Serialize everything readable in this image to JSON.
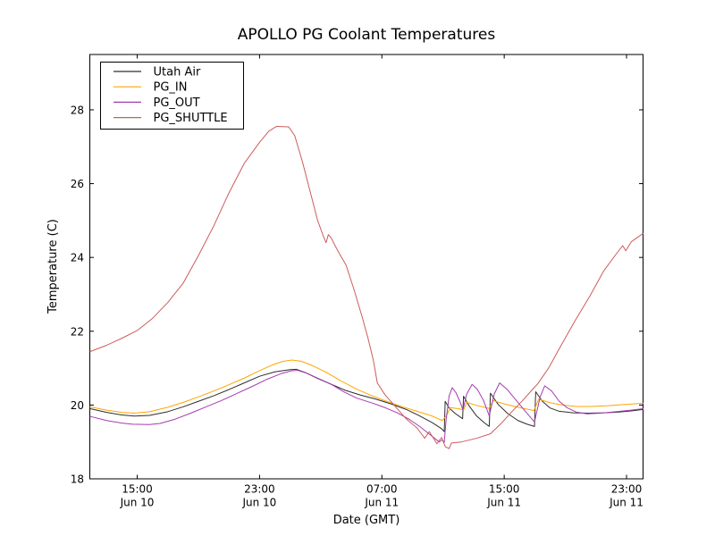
{
  "figure": {
    "background": "#ffffff",
    "frame_color": "#000000",
    "text_color": "#000000"
  },
  "chart_data": {
    "type": "line",
    "title": "APOLLO PG Coolant Temperatures",
    "xlabel": "Date (GMT)",
    "ylabel": "Temperature (C)",
    "grid": false,
    "legend_position": "upper left",
    "x_unit": "hours since Jun 10 00:00 GMT",
    "xlim": [
      11.9,
      48.08
    ],
    "ylim": [
      18,
      29.5
    ],
    "y_ticks": [
      18,
      20,
      22,
      24,
      26,
      28
    ],
    "x_ticks": [
      {
        "t": 15,
        "time": "15:00",
        "date": "Jun 10"
      },
      {
        "t": 23,
        "time": "23:00",
        "date": "Jun 10"
      },
      {
        "t": 31,
        "time": "07:00",
        "date": "Jun 11"
      },
      {
        "t": 39,
        "time": "15:00",
        "date": "Jun 11"
      },
      {
        "t": 47,
        "time": "23:00",
        "date": "Jun 11"
      }
    ],
    "series": [
      {
        "name": "Utah Air",
        "color": "#2d2d2d",
        "points": [
          [
            11.93,
            19.9
          ],
          [
            13,
            19.8
          ],
          [
            14,
            19.73
          ],
          [
            14.8,
            19.7
          ],
          [
            15.8,
            19.72
          ],
          [
            17,
            19.82
          ],
          [
            18,
            19.95
          ],
          [
            19,
            20.1
          ],
          [
            20,
            20.25
          ],
          [
            21,
            20.42
          ],
          [
            22,
            20.6
          ],
          [
            23,
            20.78
          ],
          [
            24,
            20.9
          ],
          [
            25,
            20.96
          ],
          [
            25.4,
            20.97
          ],
          [
            26,
            20.88
          ],
          [
            26.8,
            20.72
          ],
          [
            27.7,
            20.56
          ],
          [
            28.6,
            20.4
          ],
          [
            29.6,
            20.27
          ],
          [
            30.6,
            20.16
          ],
          [
            31.6,
            20.03
          ],
          [
            32.6,
            19.88
          ],
          [
            33.4,
            19.72
          ],
          [
            34.3,
            19.52
          ],
          [
            34.9,
            19.36
          ],
          [
            35.08,
            19.28
          ],
          [
            35.14,
            20.1
          ],
          [
            35.4,
            19.92
          ],
          [
            35.8,
            19.77
          ],
          [
            36.28,
            19.63
          ],
          [
            36.34,
            20.24
          ],
          [
            36.7,
            19.98
          ],
          [
            37.2,
            19.7
          ],
          [
            37.7,
            19.52
          ],
          [
            38.02,
            19.42
          ],
          [
            38.1,
            20.32
          ],
          [
            38.6,
            20.02
          ],
          [
            39.2,
            19.78
          ],
          [
            39.9,
            19.58
          ],
          [
            40.5,
            19.48
          ],
          [
            40.98,
            19.42
          ],
          [
            41.06,
            20.36
          ],
          [
            41.5,
            20.1
          ],
          [
            42.0,
            19.92
          ],
          [
            42.6,
            19.83
          ],
          [
            43.5,
            19.79
          ],
          [
            44.5,
            19.78
          ],
          [
            45.5,
            19.79
          ],
          [
            46.5,
            19.81
          ],
          [
            47.3,
            19.84
          ],
          [
            48.08,
            19.88
          ]
        ]
      },
      {
        "name": "PG_IN",
        "color": "#FFA500",
        "points": [
          [
            11.93,
            19.95
          ],
          [
            13,
            19.86
          ],
          [
            14,
            19.8
          ],
          [
            14.8,
            19.78
          ],
          [
            15.8,
            19.82
          ],
          [
            17,
            19.94
          ],
          [
            18,
            20.07
          ],
          [
            19,
            20.22
          ],
          [
            20,
            20.38
          ],
          [
            21,
            20.55
          ],
          [
            22,
            20.73
          ],
          [
            23,
            20.93
          ],
          [
            23.8,
            21.08
          ],
          [
            24.5,
            21.18
          ],
          [
            25.1,
            21.22
          ],
          [
            25.7,
            21.19
          ],
          [
            26.4,
            21.08
          ],
          [
            27.3,
            20.9
          ],
          [
            28.3,
            20.66
          ],
          [
            29.3,
            20.44
          ],
          [
            30.3,
            20.26
          ],
          [
            31.3,
            20.1
          ],
          [
            32.3,
            19.96
          ],
          [
            33.3,
            19.83
          ],
          [
            34.3,
            19.7
          ],
          [
            34.95,
            19.58
          ],
          [
            35.2,
            19.7
          ],
          [
            35.5,
            19.93
          ],
          [
            36.0,
            19.9
          ],
          [
            36.35,
            19.87
          ],
          [
            36.55,
            20.07
          ],
          [
            37.2,
            19.99
          ],
          [
            38.0,
            19.91
          ],
          [
            38.3,
            20.12
          ],
          [
            39.0,
            20.03
          ],
          [
            40.0,
            19.93
          ],
          [
            40.95,
            19.85
          ],
          [
            41.25,
            20.16
          ],
          [
            42.0,
            20.06
          ],
          [
            42.8,
            20.0
          ],
          [
            43.7,
            19.96
          ],
          [
            44.7,
            19.96
          ],
          [
            45.7,
            19.98
          ],
          [
            46.7,
            20.01
          ],
          [
            48.08,
            20.05
          ]
        ]
      },
      {
        "name": "PG_OUT",
        "color": "#A53BB0",
        "points": [
          [
            11.93,
            19.69
          ],
          [
            13,
            19.58
          ],
          [
            14,
            19.51
          ],
          [
            14.7,
            19.48
          ],
          [
            15.8,
            19.47
          ],
          [
            16.5,
            19.5
          ],
          [
            17.5,
            19.62
          ],
          [
            18.5,
            19.78
          ],
          [
            19.5,
            19.95
          ],
          [
            20.5,
            20.12
          ],
          [
            21.5,
            20.31
          ],
          [
            22.5,
            20.5
          ],
          [
            23.5,
            20.7
          ],
          [
            24.4,
            20.85
          ],
          [
            25.1,
            20.93
          ],
          [
            25.5,
            20.94
          ],
          [
            26.1,
            20.86
          ],
          [
            26.9,
            20.71
          ],
          [
            27.7,
            20.56
          ],
          [
            28.5,
            20.36
          ],
          [
            29.4,
            20.18
          ],
          [
            30.4,
            20.05
          ],
          [
            31.2,
            19.93
          ],
          [
            32.0,
            19.79
          ],
          [
            32.8,
            19.61
          ],
          [
            33.5,
            19.41
          ],
          [
            34.2,
            19.18
          ],
          [
            34.75,
            19.0
          ],
          [
            34.95,
            19.06
          ],
          [
            35.08,
            18.99
          ],
          [
            35.2,
            19.6
          ],
          [
            35.4,
            20.25
          ],
          [
            35.6,
            20.47
          ],
          [
            35.85,
            20.33
          ],
          [
            36.1,
            20.1
          ],
          [
            36.3,
            19.87
          ],
          [
            36.55,
            20.3
          ],
          [
            36.9,
            20.56
          ],
          [
            37.25,
            20.42
          ],
          [
            37.65,
            20.12
          ],
          [
            38.02,
            19.71
          ],
          [
            38.35,
            20.3
          ],
          [
            38.7,
            20.6
          ],
          [
            39.2,
            20.42
          ],
          [
            39.8,
            20.12
          ],
          [
            40.4,
            19.82
          ],
          [
            40.98,
            19.54
          ],
          [
            41.35,
            20.22
          ],
          [
            41.65,
            20.52
          ],
          [
            42.1,
            20.38
          ],
          [
            42.6,
            20.1
          ],
          [
            43.1,
            19.93
          ],
          [
            43.7,
            19.81
          ],
          [
            44.4,
            19.76
          ],
          [
            45.3,
            19.78
          ],
          [
            46.3,
            19.82
          ],
          [
            47.3,
            19.86
          ],
          [
            48.08,
            19.9
          ]
        ]
      },
      {
        "name": "PG_SHUTTLE",
        "color": "#CD5C5C",
        "points": [
          [
            11.93,
            21.45
          ],
          [
            13,
            21.62
          ],
          [
            14,
            21.81
          ],
          [
            15,
            22.02
          ],
          [
            16,
            22.35
          ],
          [
            17,
            22.78
          ],
          [
            18,
            23.3
          ],
          [
            19,
            24.05
          ],
          [
            20,
            24.85
          ],
          [
            21,
            25.75
          ],
          [
            22,
            26.55
          ],
          [
            23,
            27.12
          ],
          [
            23.6,
            27.42
          ],
          [
            24.1,
            27.55
          ],
          [
            24.9,
            27.54
          ],
          [
            25.3,
            27.3
          ],
          [
            25.8,
            26.6
          ],
          [
            26.3,
            25.8
          ],
          [
            26.8,
            25.0
          ],
          [
            27.15,
            24.6
          ],
          [
            27.35,
            24.4
          ],
          [
            27.5,
            24.62
          ],
          [
            27.7,
            24.52
          ],
          [
            27.9,
            24.35
          ],
          [
            28.2,
            24.12
          ],
          [
            28.66,
            23.79
          ],
          [
            29.2,
            23.1
          ],
          [
            29.7,
            22.4
          ],
          [
            30.1,
            21.8
          ],
          [
            30.45,
            21.2
          ],
          [
            30.7,
            20.6
          ],
          [
            31.2,
            20.28
          ],
          [
            31.9,
            19.95
          ],
          [
            32.6,
            19.62
          ],
          [
            33.3,
            19.38
          ],
          [
            33.8,
            19.1
          ],
          [
            34.1,
            19.28
          ],
          [
            34.6,
            18.95
          ],
          [
            34.9,
            19.12
          ],
          [
            35.15,
            18.87
          ],
          [
            35.4,
            18.82
          ],
          [
            35.55,
            18.97
          ],
          [
            36.2,
            19.0
          ],
          [
            37.2,
            19.1
          ],
          [
            38.1,
            19.22
          ],
          [
            38.8,
            19.5
          ],
          [
            39.5,
            19.82
          ],
          [
            40.2,
            20.12
          ],
          [
            40.8,
            20.4
          ],
          [
            41.2,
            20.58
          ],
          [
            41.9,
            21.0
          ],
          [
            42.7,
            21.6
          ],
          [
            43.6,
            22.26
          ],
          [
            44.6,
            22.95
          ],
          [
            45.5,
            23.63
          ],
          [
            46.3,
            24.08
          ],
          [
            46.75,
            24.32
          ],
          [
            46.95,
            24.18
          ],
          [
            47.3,
            24.42
          ],
          [
            48.08,
            24.65
          ]
        ]
      }
    ]
  }
}
